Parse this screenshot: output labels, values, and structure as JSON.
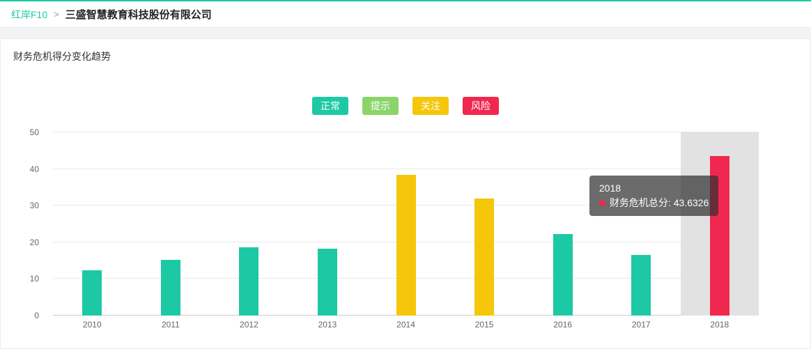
{
  "breadcrumb": {
    "root": "红岸F10",
    "separator": ">",
    "current": "三盛智慧教育科技股份有限公司"
  },
  "panel": {
    "title": "财务危机得分变化趋势"
  },
  "legend": [
    {
      "label": "正常",
      "color": "#1dc9a4"
    },
    {
      "label": "提示",
      "color": "#8bd46a"
    },
    {
      "label": "关注",
      "color": "#f5c60a"
    },
    {
      "label": "风险",
      "color": "#f0274e"
    }
  ],
  "chart_data": {
    "type": "bar",
    "title": "财务危机得分变化趋势",
    "categories": [
      "2010",
      "2011",
      "2012",
      "2013",
      "2014",
      "2015",
      "2016",
      "2017",
      "2018"
    ],
    "values": [
      12.4,
      15.2,
      18.6,
      18.2,
      38.4,
      31.9,
      22.3,
      16.6,
      43.6326
    ],
    "colors": [
      "#1dc9a4",
      "#1dc9a4",
      "#1dc9a4",
      "#1dc9a4",
      "#f5c60a",
      "#f5c60a",
      "#1dc9a4",
      "#1dc9a4",
      "#f0274e"
    ],
    "xlabel": "",
    "ylabel": "",
    "ylim": [
      0,
      50
    ],
    "yticks": [
      0,
      10,
      20,
      30,
      40,
      50
    ],
    "grid": true,
    "legend_position": "top-center",
    "highlighted_category": "2018"
  },
  "tooltip": {
    "title": "2018",
    "series_label": "财务危机总分:",
    "value": "43.6326",
    "marker_color": "#f0274e"
  }
}
